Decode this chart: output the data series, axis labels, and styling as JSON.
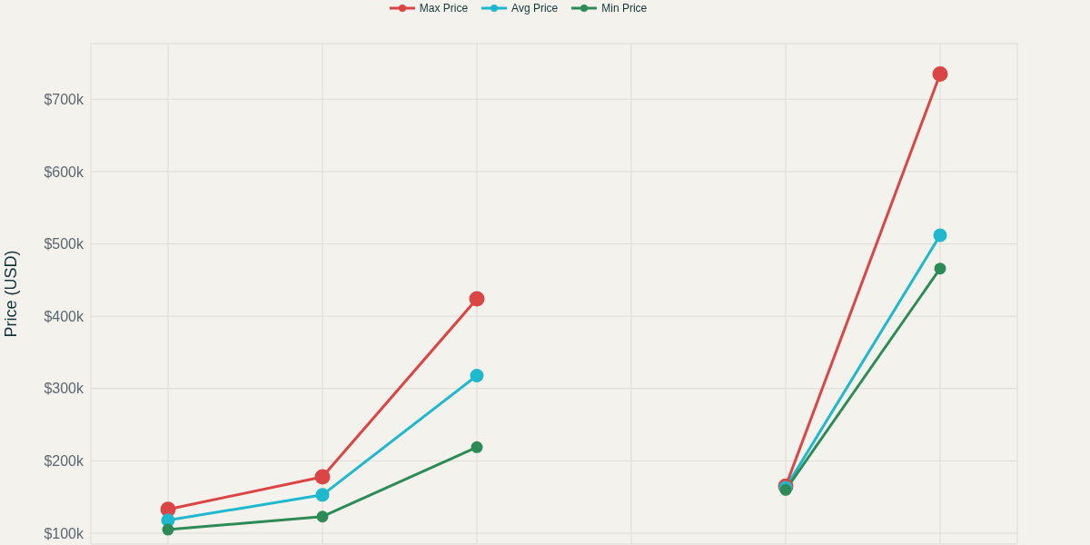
{
  "chart_data": {
    "type": "line",
    "ylabel": "Price (USD)",
    "categories": [
      null,
      null,
      null,
      null,
      null,
      null
    ],
    "series": [
      {
        "name": "Max Price",
        "color": "#db4545",
        "values": [
          133000,
          178000,
          424000,
          null,
          165000,
          735000
        ]
      },
      {
        "name": "Avg Price",
        "color": "#1fb8cd",
        "values": [
          118000,
          153000,
          318000,
          null,
          163000,
          512000
        ]
      },
      {
        "name": "Min Price",
        "color": "#2e8b57",
        "values": [
          105000,
          123000,
          219000,
          null,
          160000,
          466000
        ]
      }
    ],
    "ylim": [
      85000,
      777000
    ],
    "yticks": [
      {
        "value": 100000,
        "label": "$100k"
      },
      {
        "value": 200000,
        "label": "$200k"
      },
      {
        "value": 300000,
        "label": "$300k"
      },
      {
        "value": 400000,
        "label": "$400k"
      },
      {
        "value": 500000,
        "label": "$500k"
      },
      {
        "value": 600000,
        "label": "$600k"
      },
      {
        "value": 700000,
        "label": "$700k"
      }
    ],
    "tick_labels": "y",
    "grid": true,
    "legend": "top",
    "marker": "circle",
    "line_style": "solid"
  }
}
